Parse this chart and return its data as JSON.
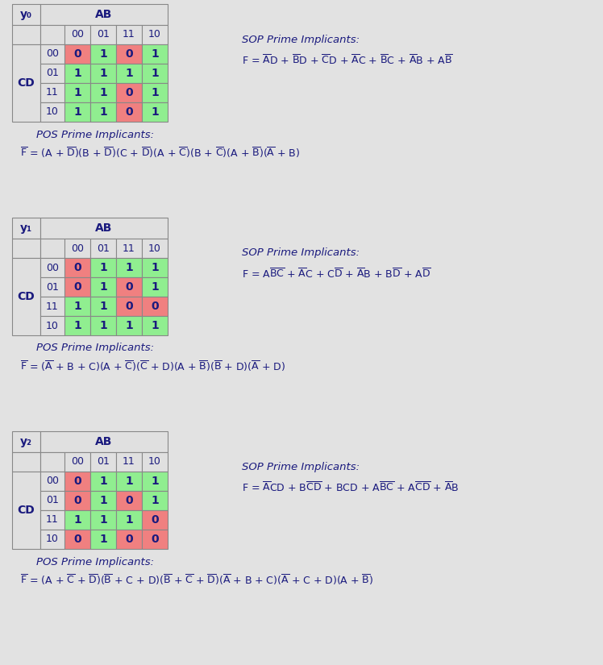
{
  "bg_color": "#e2e2e2",
  "green": "#90EE90",
  "red": "#F08080",
  "header_bg": "#e0e0e0",
  "text_color": "#1a1a7e",
  "tables": [
    {
      "label": "y₀",
      "values": [
        [
          0,
          1,
          0,
          1
        ],
        [
          1,
          1,
          1,
          1
        ],
        [
          1,
          1,
          0,
          1
        ],
        [
          1,
          1,
          0,
          1
        ]
      ],
      "colors": [
        [
          "red",
          "green",
          "red",
          "green"
        ],
        [
          "green",
          "green",
          "green",
          "green"
        ],
        [
          "green",
          "green",
          "red",
          "green"
        ],
        [
          "green",
          "green",
          "red",
          "green"
        ]
      ],
      "sop_label": "SOP Prime Implicants:",
      "pos_label": "POS Prime Implicants:"
    },
    {
      "label": "y₁",
      "values": [
        [
          0,
          1,
          1,
          1
        ],
        [
          0,
          1,
          0,
          1
        ],
        [
          1,
          1,
          0,
          0
        ],
        [
          1,
          1,
          1,
          1
        ]
      ],
      "colors": [
        [
          "red",
          "green",
          "green",
          "green"
        ],
        [
          "red",
          "green",
          "red",
          "green"
        ],
        [
          "green",
          "green",
          "red",
          "red"
        ],
        [
          "green",
          "green",
          "green",
          "green"
        ]
      ],
      "sop_label": "SOP Prime Implicants:",
      "pos_label": "POS Prime Implicants:"
    },
    {
      "label": "y₂",
      "values": [
        [
          0,
          1,
          1,
          1
        ],
        [
          0,
          1,
          0,
          1
        ],
        [
          1,
          1,
          1,
          0
        ],
        [
          0,
          1,
          0,
          0
        ]
      ],
      "colors": [
        [
          "red",
          "green",
          "green",
          "green"
        ],
        [
          "red",
          "green",
          "red",
          "green"
        ],
        [
          "green",
          "green",
          "green",
          "red"
        ],
        [
          "red",
          "green",
          "red",
          "red"
        ]
      ],
      "sop_label": "SOP Prime Implicants:",
      "pos_label": "POS Prime Implicants:"
    }
  ],
  "ab_labels": [
    "00",
    "01",
    "11",
    "10"
  ],
  "cd_labels": [
    "00",
    "01",
    "11",
    "10"
  ]
}
